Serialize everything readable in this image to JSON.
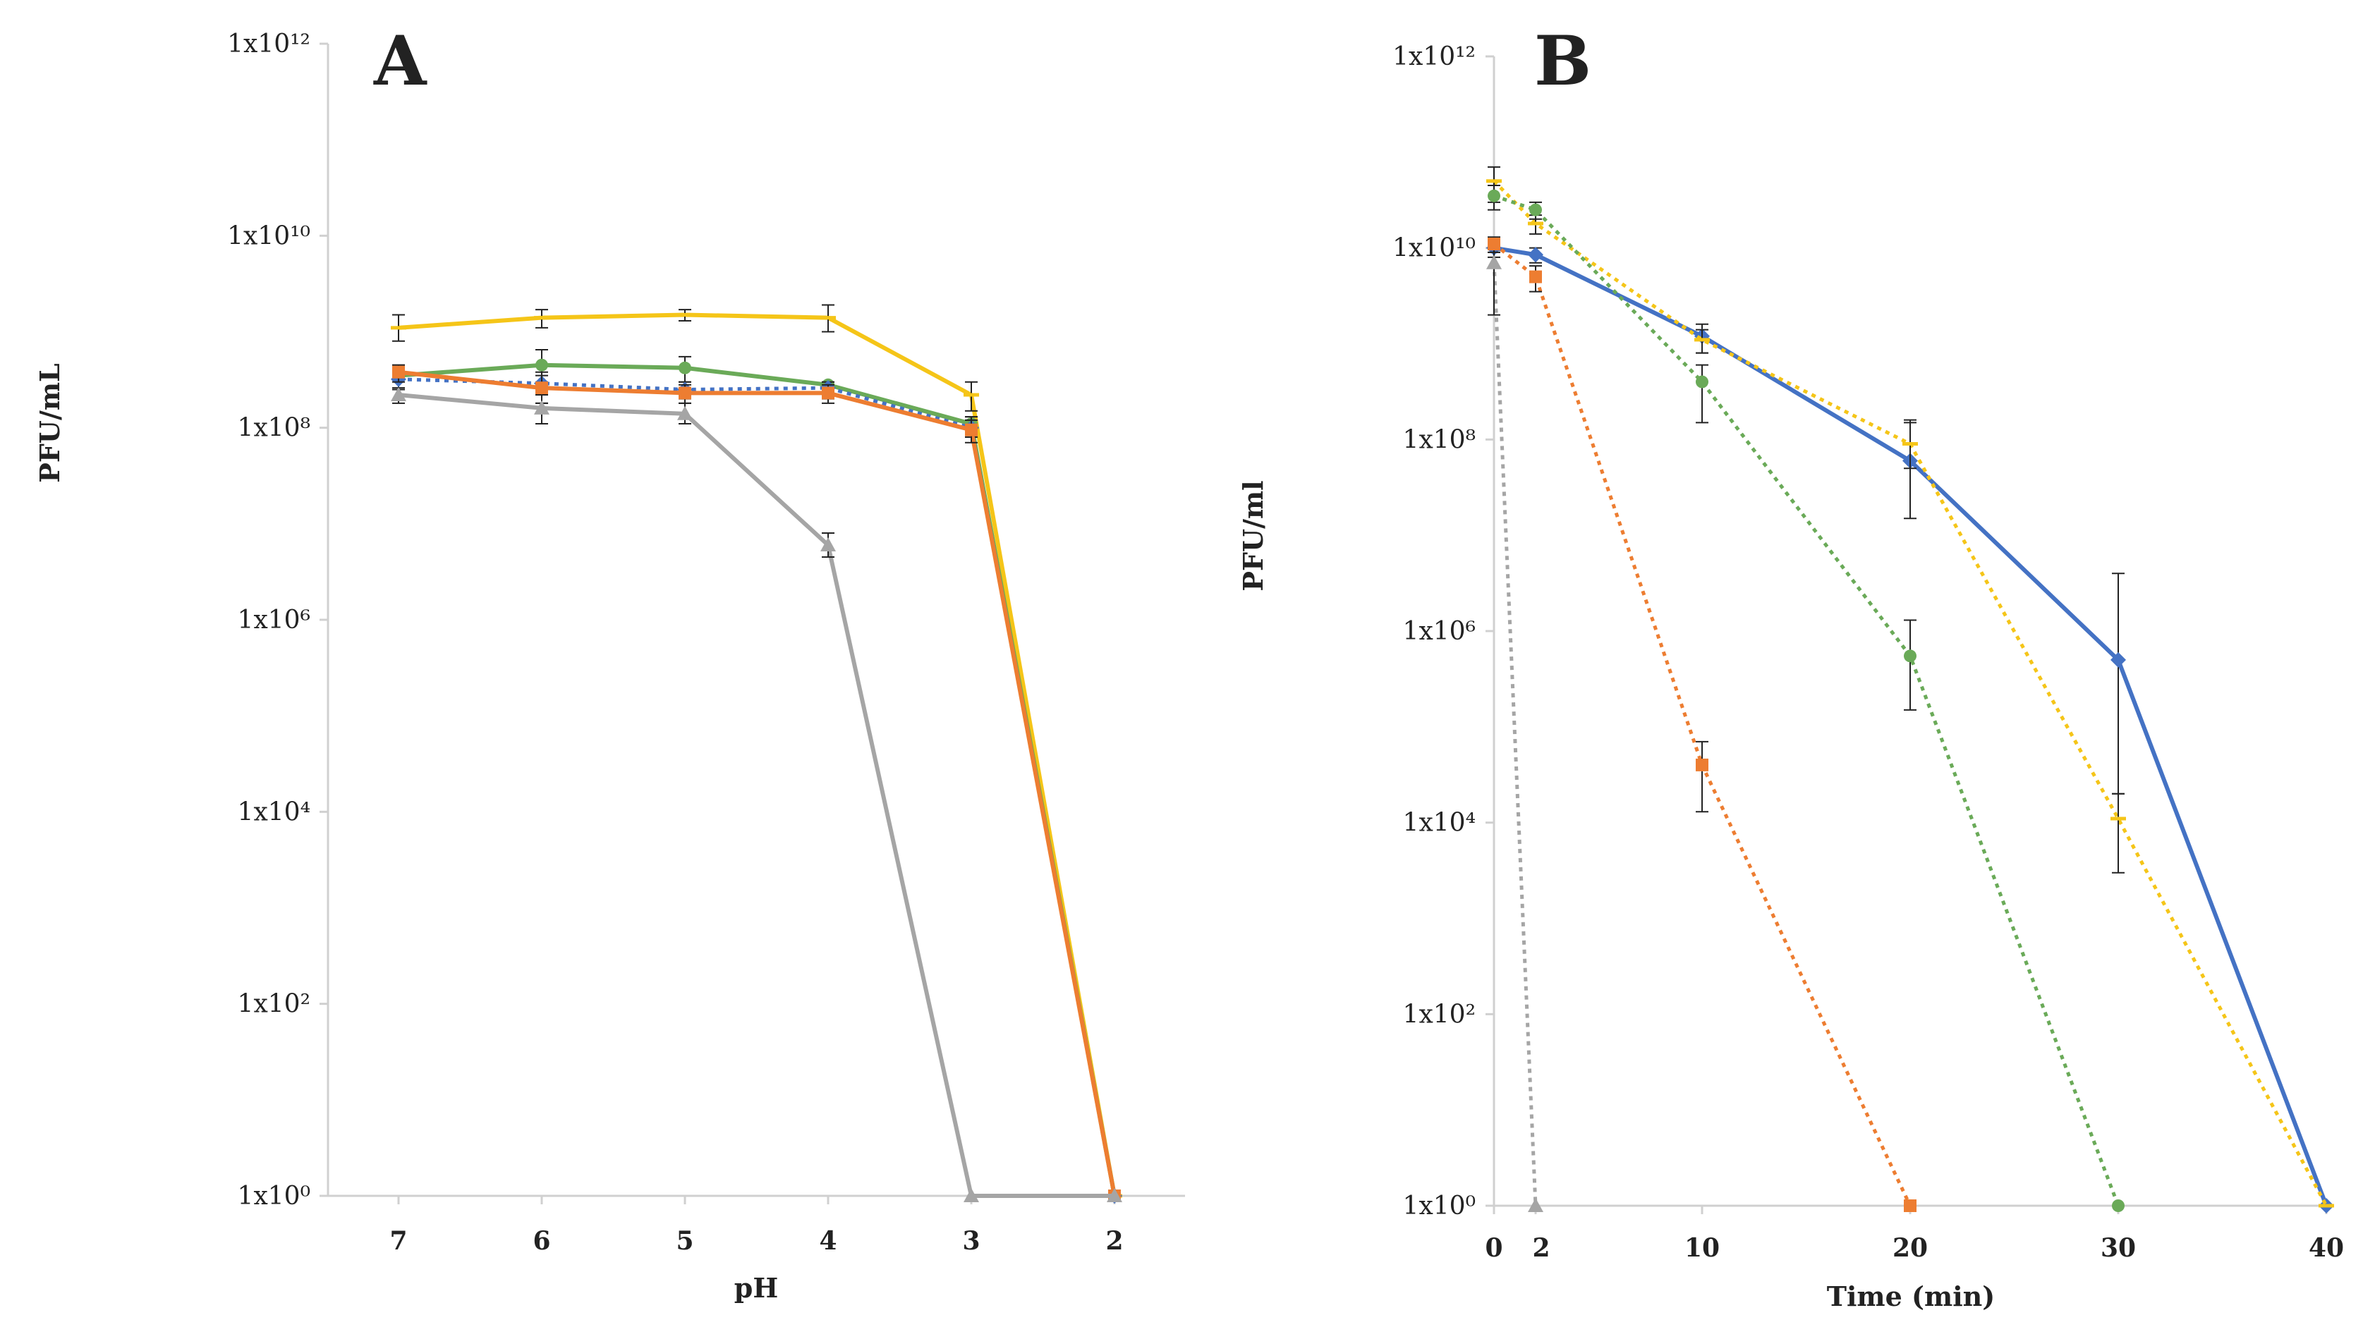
{
  "figure": {
    "panels": [
      "A",
      "B"
    ]
  },
  "chart_data": [
    {
      "panel": "A",
      "type": "line",
      "title": "A",
      "xlabel": "pH",
      "ylabel": "PFU/mL",
      "yscale": "log10",
      "ylim": [
        1,
        1000000000000.0
      ],
      "ytick_labels": [
        "1x10⁰",
        "1x10²",
        "1x10⁴",
        "1x10⁶",
        "1x10⁸",
        "1x10¹⁰",
        "1x10¹²"
      ],
      "categories": [
        "7",
        "6",
        "5",
        "4",
        "3",
        "2"
      ],
      "series": [
        {
          "name": "yellow",
          "color": "#f5c518",
          "marker": "dash",
          "dash": false,
          "values": [
            1100000000.0,
            1400000000.0,
            1500000000.0,
            1400000000.0,
            220000000.0,
            1
          ],
          "errors": [
            [
              800000000.0,
              1500000000.0
            ],
            [
              1100000000.0,
              1700000000.0
            ],
            [
              1300000000.0,
              1700000000.0
            ],
            [
              1000000000.0,
              1900000000.0
            ],
            [
              150000000.0,
              300000000.0
            ],
            [
              1,
              1
            ]
          ]
        },
        {
          "name": "green",
          "color": "#6aaa58",
          "marker": "circle",
          "dash": false,
          "values": [
            350000000.0,
            450000000.0,
            420000000.0,
            280000000.0,
            110000000.0,
            1
          ],
          "errors": [
            [
              250000000.0,
              450000000.0
            ],
            [
              300000000.0,
              650000000.0
            ],
            [
              300000000.0,
              550000000.0
            ],
            [
              250000000.0,
              300000000.0
            ],
            [
              80000000.0,
              130000000.0
            ],
            [
              1,
              1
            ]
          ]
        },
        {
          "name": "blue",
          "color": "#4472c4",
          "marker": "diamond",
          "dash": true,
          "values": [
            320000000.0,
            290000000.0,
            250000000.0,
            260000000.0,
            100000000.0,
            1
          ],
          "errors": [
            [
              250000000.0,
              400000000.0
            ],
            [
              180000000.0,
              380000000.0
            ],
            [
              200000000.0,
              300000000.0
            ],
            [
              200000000.0,
              300000000.0
            ],
            [
              80000000.0,
              130000000.0
            ],
            [
              1,
              1
            ]
          ]
        },
        {
          "name": "orange",
          "color": "#ed7d31",
          "marker": "square",
          "dash": false,
          "values": [
            380000000.0,
            260000000.0,
            230000000.0,
            230000000.0,
            95000000.0,
            1
          ],
          "errors": [
            [
              300000000.0,
              450000000.0
            ],
            [
              180000000.0,
              350000000.0
            ],
            [
              180000000.0,
              280000000.0
            ],
            [
              180000000.0,
              280000000.0
            ],
            [
              70000000.0,
              120000000.0
            ],
            [
              1,
              1
            ]
          ]
        },
        {
          "name": "gray",
          "color": "#a5a5a5",
          "marker": "triangle",
          "dash": false,
          "values": [
            220000000.0,
            160000000.0,
            140000000.0,
            6000000.0,
            1,
            1
          ],
          "errors": [
            [
              180000000.0,
              260000000.0
            ],
            [
              110000000.0,
              220000000.0
            ],
            [
              110000000.0,
              180000000.0
            ],
            [
              4500000.0,
              8000000.0
            ],
            [
              1,
              1
            ],
            [
              1,
              1
            ]
          ]
        }
      ]
    },
    {
      "panel": "B",
      "type": "line",
      "title": "B",
      "xlabel": "Time (min)",
      "ylabel": "PFU/ml",
      "yscale": "log10",
      "ylim": [
        1,
        1000000000000.0
      ],
      "xlim": [
        0,
        40
      ],
      "ytick_labels": [
        "1x10⁰",
        "1x10²",
        "1x10⁴",
        "1x10⁶",
        "1x10⁸",
        "1x10¹⁰",
        "1x10¹²"
      ],
      "xticks": [
        "0",
        "2",
        "10",
        "20",
        "30",
        "40"
      ],
      "series": [
        {
          "name": "blue",
          "color": "#4472c4",
          "marker": "diamond",
          "dash": false,
          "x": [
            0,
            2,
            10,
            20,
            30,
            40
          ],
          "values": [
            10000000000.0,
            8500000000.0,
            1200000000.0,
            60000000.0,
            500000.0,
            1
          ],
          "errors": [
            [
              8000000000.0,
              12000000000.0
            ],
            [
              7000000000.0,
              10000000000.0
            ],
            [
              800000000.0,
              1600000000.0
            ],
            [
              15000000.0,
              150000000.0
            ],
            [
              20000.0,
              4000000.0
            ],
            [
              1,
              1
            ]
          ]
        },
        {
          "name": "yellow",
          "color": "#f5c518",
          "marker": "dash",
          "dash": true,
          "x": [
            0,
            2,
            10,
            20,
            30,
            40
          ],
          "values": [
            50000000000.0,
            18000000000.0,
            1100000000.0,
            90000000.0,
            11000.0,
            1
          ],
          "errors": [
            [
              30000000000.0,
              70000000000.0
            ],
            [
              14000000000.0,
              22000000000.0
            ],
            [
              800000000.0,
              1400000000.0
            ],
            [
              50000000.0,
              160000000.0
            ],
            [
              3000.0,
              20000.0
            ],
            [
              1,
              1
            ]
          ]
        },
        {
          "name": "green",
          "color": "#6aaa58",
          "marker": "circle",
          "dash": true,
          "x": [
            0,
            2,
            10,
            20,
            30
          ],
          "values": [
            35000000000.0,
            25000000000.0,
            400000000.0,
            550000.0,
            1
          ],
          "errors": [
            [
              25000000000.0,
              45000000000.0
            ],
            [
              20000000000.0,
              30000000000.0
            ],
            [
              150000000.0,
              600000000.0
            ],
            [
              150000.0,
              1300000.0
            ],
            [
              1,
              1
            ]
          ]
        },
        {
          "name": "orange",
          "color": "#ed7d31",
          "marker": "square",
          "dash": true,
          "x": [
            0,
            2,
            10,
            20
          ],
          "values": [
            11000000000.0,
            5000000000.0,
            40000.0,
            1
          ],
          "errors": [
            [
              9000000000.0,
              13000000000.0
            ],
            [
              3500000000.0,
              6500000000.0
            ],
            [
              13000.0,
              70000.0
            ],
            [
              1,
              1
            ]
          ]
        },
        {
          "name": "gray",
          "color": "#a5a5a5",
          "marker": "triangle",
          "dash": true,
          "x": [
            0,
            2
          ],
          "values": [
            7000000000.0,
            1
          ],
          "errors": [
            [
              2000000000.0,
              9000000000.0
            ],
            [
              1,
              1
            ]
          ]
        }
      ]
    }
  ]
}
